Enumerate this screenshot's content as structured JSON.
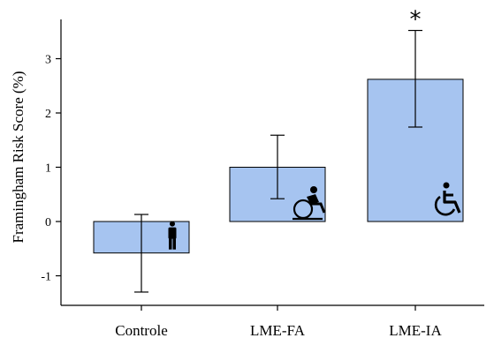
{
  "chart_data": {
    "type": "bar",
    "title": "",
    "xlabel": "",
    "ylabel": "Framingham Risk Score (%)",
    "ylim": [
      -1.5,
      3.7
    ],
    "yticks": [
      -1,
      0,
      1,
      2,
      3
    ],
    "yticklabels": [
      "-1",
      "0",
      "1",
      "2",
      "3"
    ],
    "categories": [
      "Controle",
      "LME-FA",
      "LME-IA"
    ],
    "values": [
      -0.58,
      1.0,
      2.62
    ],
    "error_low": [
      -1.3,
      0.42,
      1.74
    ],
    "error_high": [
      0.13,
      1.59,
      3.52
    ],
    "annotations": [
      "",
      "",
      "*"
    ],
    "icons": [
      "standing-person-icon",
      "wheelchair-athlete-icon",
      "wheelchair-icon"
    ],
    "grid": false,
    "legend": "none",
    "bar_color": "#a6c4f0"
  }
}
